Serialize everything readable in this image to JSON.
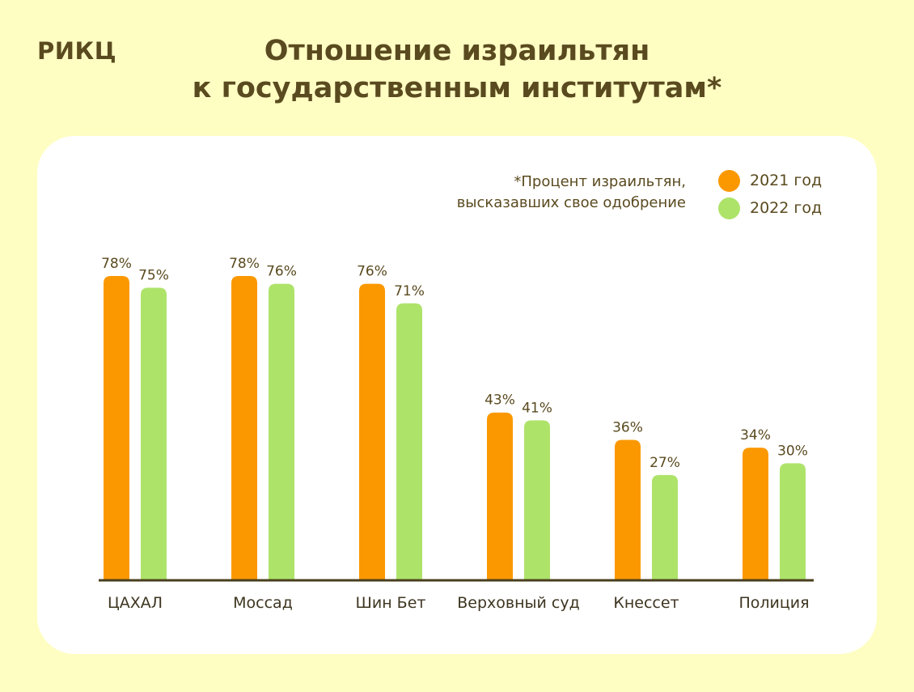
{
  "brand": "РИКЦ",
  "title_lines": [
    "Отношение израильтян",
    "к государственным институтам*"
  ],
  "note_lines": [
    "*Процент израильтян,",
    "высказавших свое одобрение"
  ],
  "colors": {
    "2021": "#fb9800",
    "2022": "#aee36a",
    "axis": "#4a3f1e"
  },
  "chart_data": {
    "type": "bar",
    "title": "Отношение израильтян к государственным институтам*",
    "categories": [
      "ЦАХАЛ",
      "Моссад",
      "Шин Бет",
      "Верховный суд",
      "Кнессет",
      "Полиция"
    ],
    "series": [
      {
        "name": "2021 год",
        "values": [
          78,
          78,
          76,
          43,
          36,
          34
        ],
        "labels": [
          "78%",
          "78%",
          "76%",
          "43%",
          "36%",
          "34%"
        ]
      },
      {
        "name": "2022 год",
        "values": [
          75,
          76,
          71,
          41,
          27,
          30
        ],
        "labels": [
          "75%",
          "76%",
          "71%",
          "41%",
          "27%",
          "30%"
        ]
      }
    ],
    "legend_position": "top-right",
    "grid": false
  }
}
